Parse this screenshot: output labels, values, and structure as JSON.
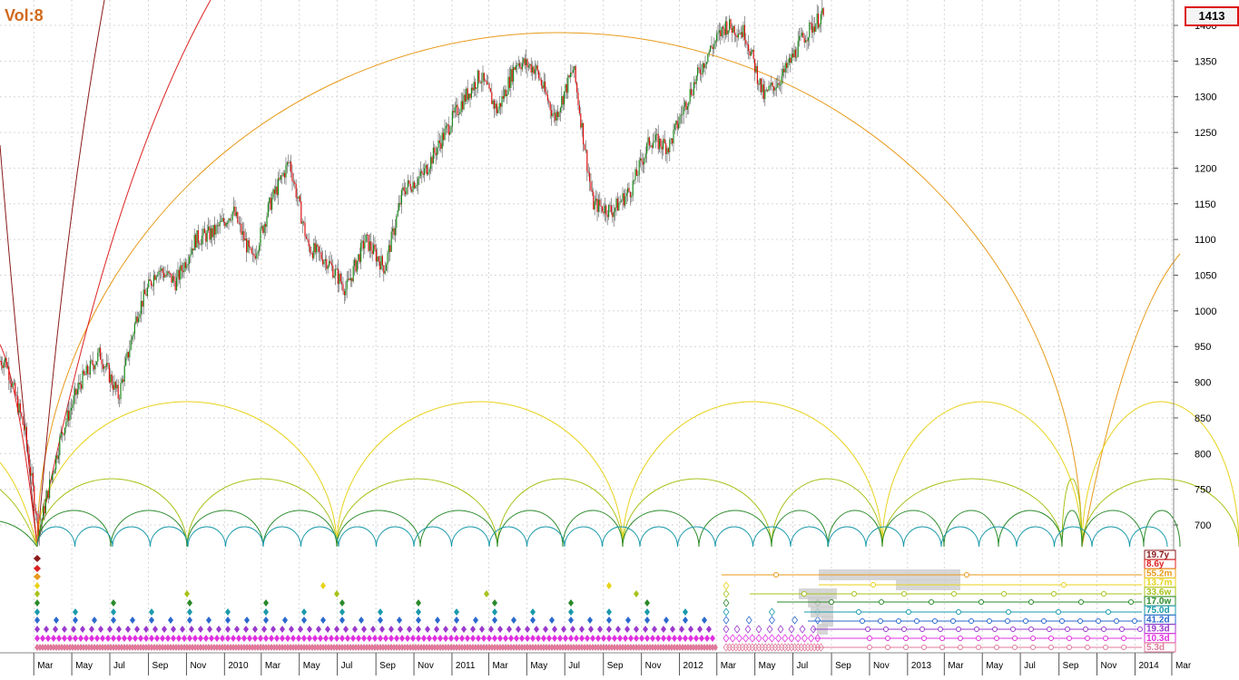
{
  "header": {
    "volume_label": "Vol:8",
    "current_price": "1413"
  },
  "colors": {
    "up_candle": "#1a8a1a",
    "down_candle": "#dd1111",
    "grid": "#d6d6d6",
    "price_box_border": "#dd1111",
    "vol_label": "#d2691e"
  },
  "chart_data": {
    "type": "candlestick",
    "x_axis": {
      "ticks": [
        "Mar",
        "May",
        "Jul",
        "Sep",
        "Nov",
        "2010",
        "Mar",
        "May",
        "Jul",
        "Sep",
        "Nov",
        "2011",
        "Mar",
        "May",
        "Jul",
        "Sep",
        "Nov",
        "2012",
        "Mar",
        "May",
        "Jul",
        "Sep",
        "Nov",
        "2013",
        "Mar",
        "May",
        "Jul",
        "Sep",
        "Nov",
        "2014",
        "Mar"
      ],
      "range": [
        "2009-02",
        "2014-03"
      ]
    },
    "y_axis": {
      "ticks": [
        700,
        750,
        800,
        850,
        900,
        950,
        1000,
        1050,
        1100,
        1150,
        1200,
        1250,
        1300,
        1350,
        1400
      ],
      "range": [
        660,
        1440
      ],
      "side": "right"
    },
    "grid": true,
    "price_path": [
      [
        "2009-01",
        930
      ],
      [
        "2009-02",
        830
      ],
      [
        "2009-03-09",
        690
      ],
      [
        "2009-04",
        830
      ],
      [
        "2009-05",
        900
      ],
      [
        "2009-06",
        940
      ],
      [
        "2009-07",
        880
      ],
      [
        "2009-08",
        1000
      ],
      [
        "2009-09",
        1060
      ],
      [
        "2009-10",
        1040
      ],
      [
        "2009-11",
        1100
      ],
      [
        "2009-12",
        1110
      ],
      [
        "2010-01",
        1140
      ],
      [
        "2010-02",
        1070
      ],
      [
        "2010-03",
        1150
      ],
      [
        "2010-04",
        1210
      ],
      [
        "2010-05",
        1090
      ],
      [
        "2010-06",
        1070
      ],
      [
        "2010-07",
        1030
      ],
      [
        "2010-08",
        1100
      ],
      [
        "2010-09",
        1060
      ],
      [
        "2010-10",
        1170
      ],
      [
        "2010-11",
        1190
      ],
      [
        "2010-12",
        1240
      ],
      [
        "2011-01",
        1290
      ],
      [
        "2011-02",
        1330
      ],
      [
        "2011-03",
        1280
      ],
      [
        "2011-04",
        1350
      ],
      [
        "2011-05",
        1340
      ],
      [
        "2011-06",
        1270
      ],
      [
        "2011-07",
        1340
      ],
      [
        "2011-08",
        1150
      ],
      [
        "2011-09",
        1140
      ],
      [
        "2011-10",
        1170
      ],
      [
        "2011-11",
        1240
      ],
      [
        "2011-12",
        1230
      ],
      [
        "2012-01",
        1300
      ],
      [
        "2012-02",
        1360
      ],
      [
        "2012-03",
        1400
      ],
      [
        "2012-04",
        1390
      ],
      [
        "2012-05",
        1300
      ],
      [
        "2012-06",
        1330
      ],
      [
        "2012-07",
        1380
      ],
      [
        "2012-08",
        1413
      ]
    ],
    "cycles": [
      {
        "name": "19.7y",
        "color": "#8b1a1a"
      },
      {
        "name": "8.6y",
        "color": "#dd2222"
      },
      {
        "name": "55.2m",
        "color": "#e89a1a"
      },
      {
        "name": "13.7m",
        "color": "#e8d21a"
      },
      {
        "name": "33.6w",
        "color": "#a8c21a"
      },
      {
        "name": "17.0w",
        "color": "#2a8a2a"
      },
      {
        "name": "75.0d",
        "color": "#1a9aaa"
      },
      {
        "name": "41.2d",
        "color": "#2a6acc"
      },
      {
        "name": "19.3d",
        "color": "#9a3acc"
      },
      {
        "name": "10.3d",
        "color": "#e030e0"
      },
      {
        "name": "5.3d",
        "color": "#e07a9a"
      }
    ]
  }
}
